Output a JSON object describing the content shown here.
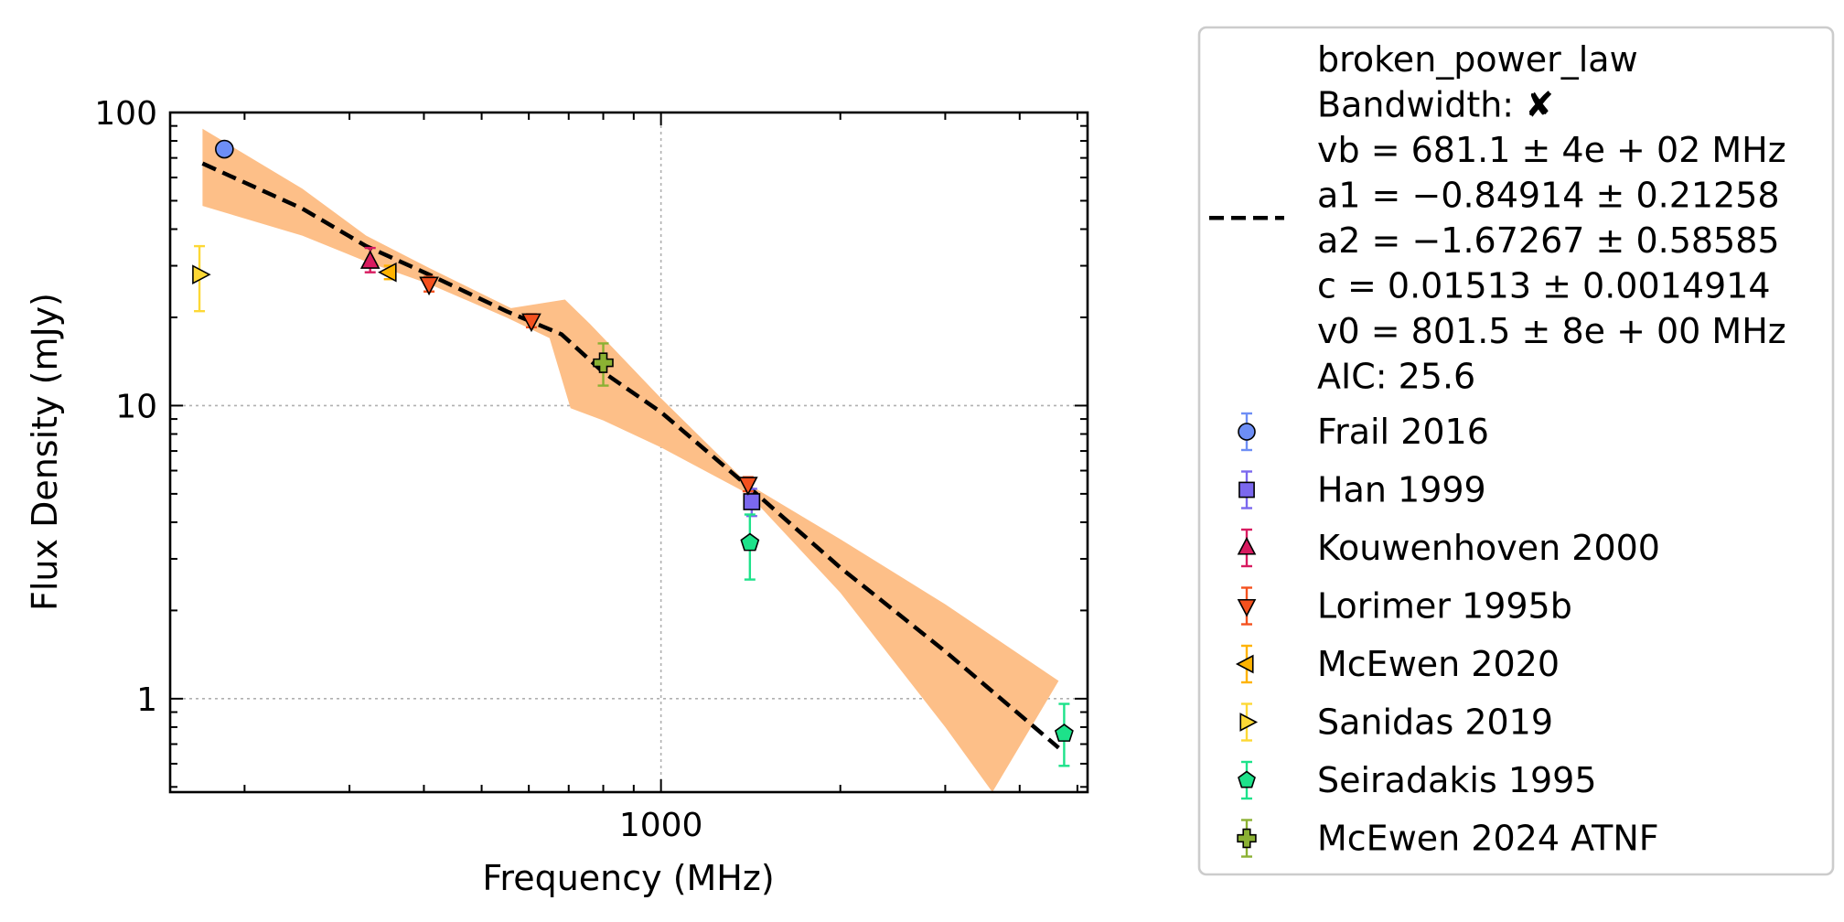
{
  "chart_data": {
    "type": "scatter",
    "xlabel": "Frequency (MHz)",
    "ylabel": "Flux Density (mJy)",
    "xscale": "log",
    "yscale": "log",
    "xlim": [
      150,
      5200
    ],
    "ylim": [
      0.48,
      100
    ],
    "x_ticks": [
      {
        "value": 1000,
        "label": "1000"
      }
    ],
    "y_ticks": [
      {
        "value": 1,
        "label": "1"
      },
      {
        "value": 10,
        "label": "10"
      },
      {
        "value": 100,
        "label": "100"
      }
    ],
    "grid": true,
    "legend_position": "outside-right",
    "fit": {
      "name": "broken_power_law",
      "info_lines": [
        "broken_power_law",
        "Bandwidth: ✘",
        "vb = 681.1 ± 4e + 02 MHz",
        "a1 = −0.84914 ± 0.21258",
        "a2 = −1.67267 ± 0.58585",
        "c = 0.01513 ± 0.0014914",
        "v0 = 801.5 ± 8e + 00 MHz",
        "AIC: 25.6"
      ],
      "color": "#000000",
      "band_color": "#fdbf88",
      "line": [
        [
          170,
          67
        ],
        [
          250,
          47
        ],
        [
          320,
          35
        ],
        [
          408,
          28
        ],
        [
          550,
          21
        ],
        [
          681,
          17.5
        ],
        [
          800,
          13.0
        ],
        [
          1000,
          9.5
        ],
        [
          1400,
          5.3
        ],
        [
          2000,
          2.8
        ],
        [
          3000,
          1.45
        ],
        [
          4650,
          0.68
        ]
      ],
      "band_upper": [
        [
          170,
          88
        ],
        [
          250,
          55
        ],
        [
          320,
          38
        ],
        [
          408,
          29.5
        ],
        [
          560,
          21.5
        ],
        [
          690,
          23
        ],
        [
          760,
          19
        ],
        [
          1000,
          10.6
        ],
        [
          1400,
          5.4
        ],
        [
          2000,
          3.5
        ],
        [
          3000,
          2.1
        ],
        [
          4650,
          1.15
        ]
      ],
      "band_lower": [
        [
          170,
          48
        ],
        [
          250,
          38
        ],
        [
          320,
          31
        ],
        [
          408,
          26
        ],
        [
          550,
          20
        ],
        [
          650,
          17
        ],
        [
          705,
          9.8
        ],
        [
          800,
          8.9
        ],
        [
          1000,
          7.2
        ],
        [
          1400,
          5.0
        ],
        [
          2000,
          2.3
        ],
        [
          3000,
          0.8
        ],
        [
          3600,
          0.48
        ]
      ]
    },
    "series": [
      {
        "name": "Frail 2016",
        "marker": "circle",
        "color": "#6d8ef5",
        "points": [
          {
            "x": 185,
            "y": 75,
            "yerr": [
              0,
              0
            ]
          }
        ]
      },
      {
        "name": "Han 1999",
        "marker": "square",
        "color": "#7b68ee",
        "points": [
          {
            "x": 1420,
            "y": 4.7,
            "yerr": [
              0.5,
              0.5
            ]
          }
        ]
      },
      {
        "name": "Kouwenhoven 2000",
        "marker": "triangle-up",
        "color": "#d81b60",
        "points": [
          {
            "x": 325,
            "y": 31,
            "yerr": [
              2.5,
              3.5
            ]
          }
        ]
      },
      {
        "name": "Lorimer 1995b",
        "marker": "triangle-down",
        "color": "#f4511e",
        "points": [
          {
            "x": 408,
            "y": 26,
            "yerr": [
              1.5,
              1.5
            ]
          },
          {
            "x": 606,
            "y": 19.5,
            "yerr": [
              1,
              1
            ]
          },
          {
            "x": 1400,
            "y": 5.4,
            "yerr": [
              0.3,
              0.3
            ]
          }
        ]
      },
      {
        "name": "McEwen 2020",
        "marker": "triangle-left",
        "color": "#ffb300",
        "points": [
          {
            "x": 350,
            "y": 28.5,
            "yerr": [
              1.5,
              1.5
            ]
          }
        ]
      },
      {
        "name": "Sanidas 2019",
        "marker": "triangle-right",
        "color": "#fdd835",
        "points": [
          {
            "x": 168,
            "y": 28,
            "yerr": [
              7,
              7
            ]
          }
        ]
      },
      {
        "name": "Seiradakis 1995",
        "marker": "pentagon",
        "color": "#1de28a",
        "points": [
          {
            "x": 1410,
            "y": 3.4,
            "yerr": [
              0.85,
              0.85
            ]
          },
          {
            "x": 4750,
            "y": 0.76,
            "yerr": [
              0.17,
              0.2
            ]
          }
        ]
      },
      {
        "name": "McEwen 2024 ATNF",
        "marker": "plus",
        "color": "#8bb133",
        "points": [
          {
            "x": 800,
            "y": 14,
            "yerr": [
              2.3,
              2.3
            ]
          }
        ]
      }
    ]
  }
}
